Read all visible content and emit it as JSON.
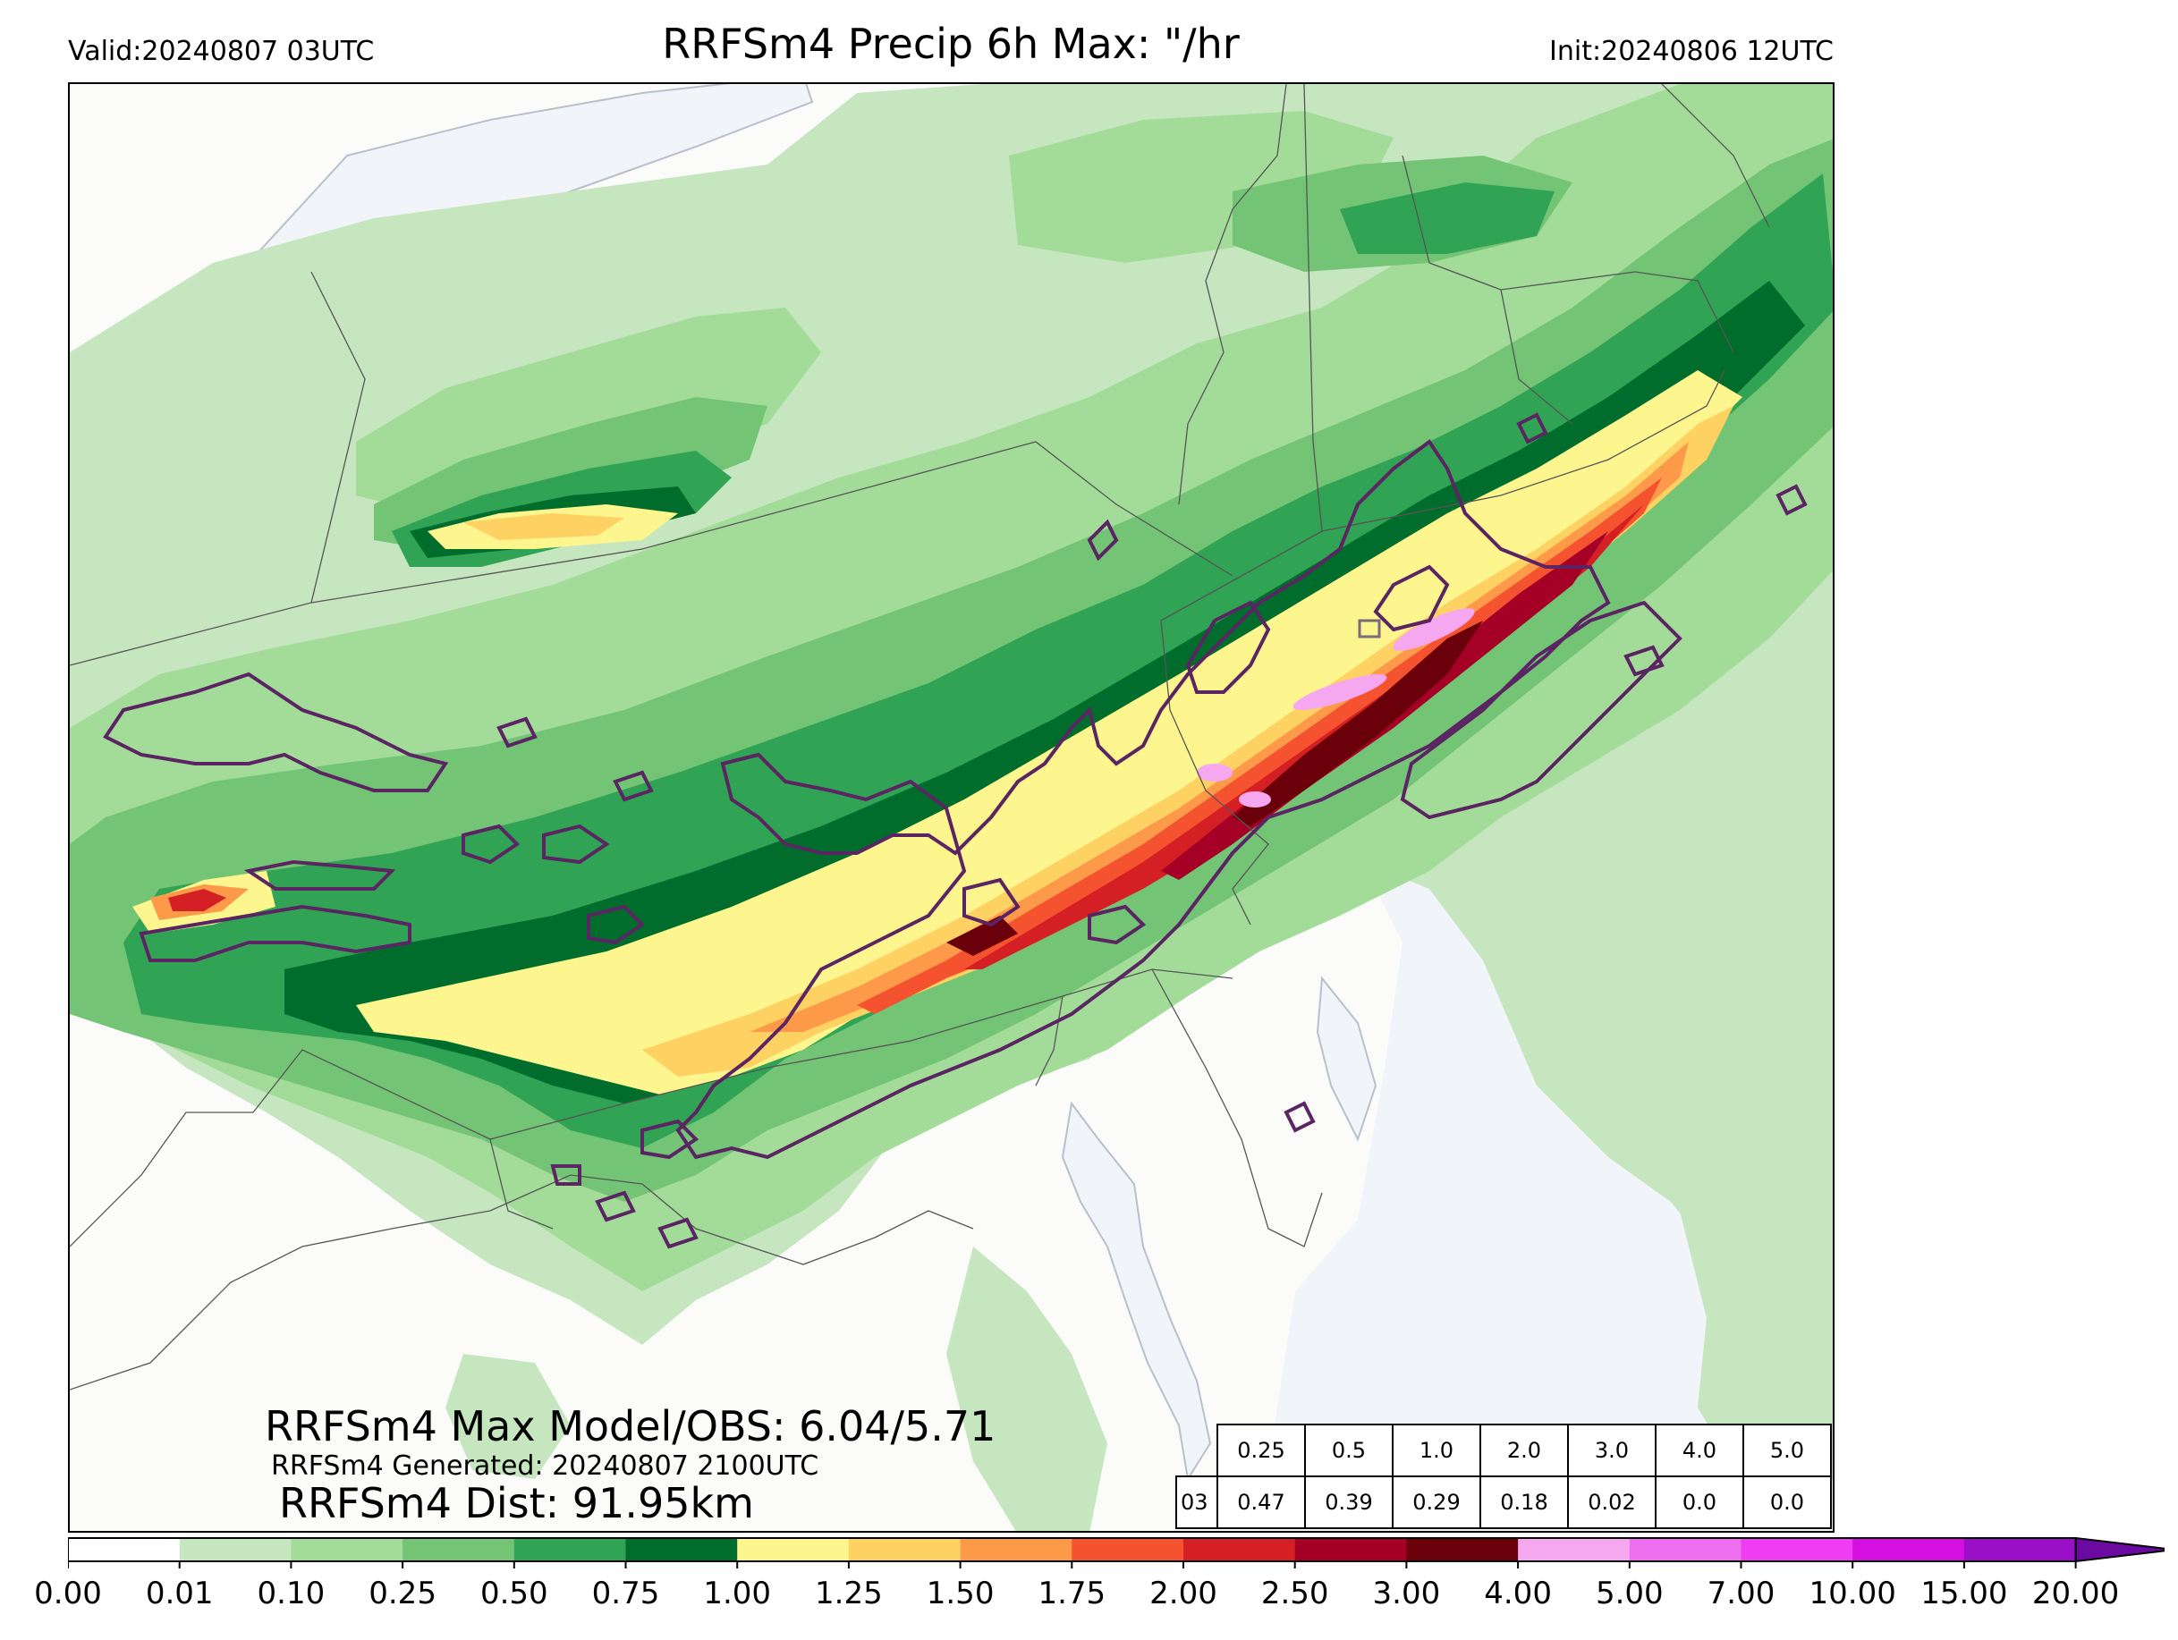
{
  "header": {
    "valid": "Valid:20240807 03UTC",
    "title": "RRFSm4 Precip 6h Max: \"/hr",
    "init": "Init:20240806 12UTC"
  },
  "stats": {
    "max_line": "RRFSm4 Max Model/OBS: 6.04/5.71",
    "generated_line": "RRFSm4 Generated: 20240807 2100UTC",
    "dist_line": "RRFSm4 Dist: 91.95km"
  },
  "threshold_table": {
    "thresholds": [
      "0.25",
      "0.5",
      "1.0",
      "2.0",
      "3.0",
      "4.0",
      "5.0"
    ],
    "row_label": "03",
    "values": [
      "0.47",
      "0.39",
      "0.29",
      "0.18",
      "0.02",
      "0.0",
      "0.0"
    ]
  },
  "colorbar": {
    "ticks": [
      "0.00",
      "0.01",
      "0.10",
      "0.25",
      "0.50",
      "0.75",
      "1.00",
      "1.25",
      "1.50",
      "1.75",
      "2.00",
      "2.50",
      "3.00",
      "4.00",
      "5.00",
      "7.00",
      "10.00",
      "15.00",
      "20.00"
    ],
    "colors": [
      "#ffffff",
      "#c6e6c0",
      "#a2dc98",
      "#74c476",
      "#31a354",
      "#006d2c",
      "#fdf68e",
      "#fed163",
      "#fc9a4a",
      "#f5532f",
      "#d42025",
      "#a50026",
      "#6a0009",
      "#f5a8f0",
      "#ee6ef0",
      "#f03cf2",
      "#d40fe0",
      "#9a10c8"
    ]
  },
  "colors": {
    "water": "#f1f4f9",
    "land": "#fbfbfa",
    "obs_contour": "#5b2463"
  }
}
